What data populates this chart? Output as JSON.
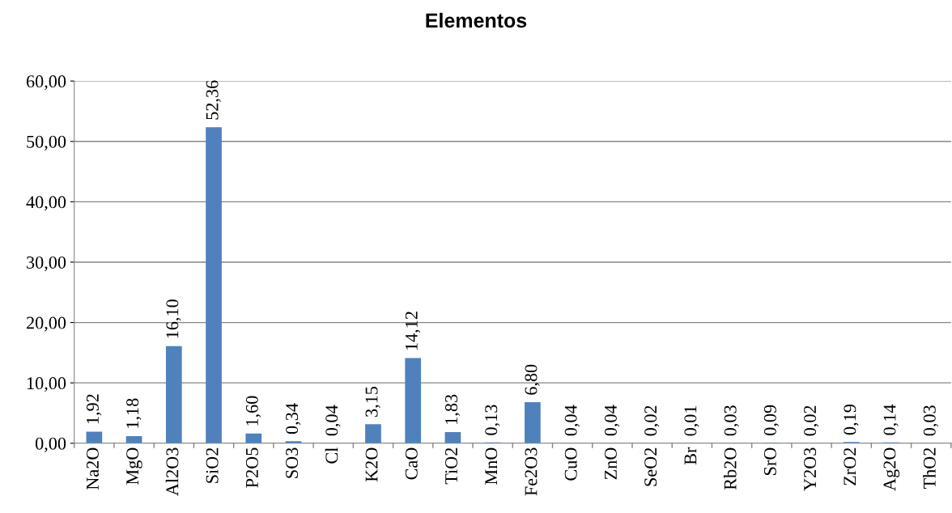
{
  "chart_data": {
    "type": "bar",
    "title": "Elementos",
    "categories": [
      "Na2O",
      "MgO",
      "Al2O3",
      "SiO2",
      "P2O5",
      "SO3",
      "Cl",
      "K2O",
      "CaO",
      "TiO2",
      "MnO",
      "Fe2O3",
      "CuO",
      "ZnO",
      "SeO2",
      "Br",
      "Rb2O",
      "SrO",
      "Y2O3",
      "ZrO2",
      "Ag2O",
      "ThO2"
    ],
    "values": [
      1.92,
      1.18,
      16.1,
      52.36,
      1.6,
      0.34,
      0.04,
      3.15,
      14.12,
      1.83,
      0.13,
      6.8,
      0.04,
      0.04,
      0.02,
      0.01,
      0.03,
      0.09,
      0.02,
      0.19,
      0.14,
      0.03
    ],
    "value_labels": [
      "1,92",
      "1,18",
      "16,10",
      "52,36",
      "1,60",
      "0,34",
      "0,04",
      "3,15",
      "14,12",
      "1,83",
      "0,13",
      "6,80",
      "0,04",
      "0,04",
      "0,02",
      "0,01",
      "0,03",
      "0,09",
      "0,02",
      "0,19",
      "0,14",
      "0,03"
    ],
    "color": "#4f81bd",
    "ylim": [
      0,
      60
    ],
    "yticks": [
      {
        "value": 0,
        "label": "0,00"
      },
      {
        "value": 10,
        "label": "10,00"
      },
      {
        "value": 20,
        "label": "20,00"
      },
      {
        "value": 30,
        "label": "30,00"
      },
      {
        "value": 40,
        "label": "40,00"
      },
      {
        "value": 50,
        "label": "50,00"
      },
      {
        "value": 60,
        "label": "60,00"
      }
    ],
    "grid": "y"
  }
}
